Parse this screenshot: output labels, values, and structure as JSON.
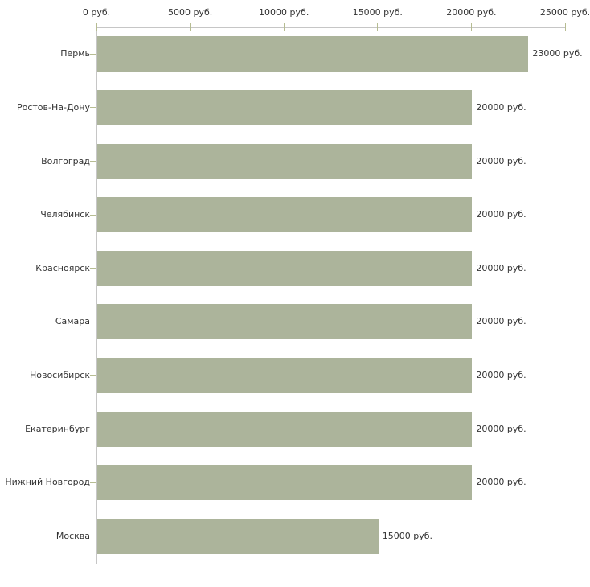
{
  "chart_data": {
    "type": "bar",
    "orientation": "horizontal",
    "title": "",
    "xlabel": "",
    "ylabel": "",
    "unit": "руб.",
    "xlim": [
      0,
      25000
    ],
    "grid": false,
    "legend": false,
    "categories": [
      "Пермь",
      "Ростов-На-Дону",
      "Волгоград",
      "Челябинск",
      "Красноярск",
      "Самара",
      "Новосибирск",
      "Екатеринбург",
      "Нижний Новгород",
      "Москва"
    ],
    "values": [
      23000,
      20000,
      20000,
      20000,
      20000,
      20000,
      20000,
      20000,
      20000,
      15000
    ],
    "value_labels": [
      "23000 руб.",
      "20000 руб.",
      "20000 руб.",
      "20000 руб.",
      "20000 руб.",
      "20000 руб.",
      "20000 руб.",
      "20000 руб.",
      "20000 руб.",
      "15000 руб."
    ],
    "x_ticks": [
      0,
      5000,
      10000,
      15000,
      20000,
      25000
    ],
    "x_tick_labels": [
      "0 руб.",
      "5000 руб.",
      "10000 руб.",
      "15000 руб.",
      "20000 руб.",
      "25000 руб."
    ],
    "colors": {
      "bar": "#acb49b",
      "axis": "#c6c6c6",
      "tick": "#b6bc92",
      "text": "#333333",
      "background": "#ffffff"
    }
  }
}
